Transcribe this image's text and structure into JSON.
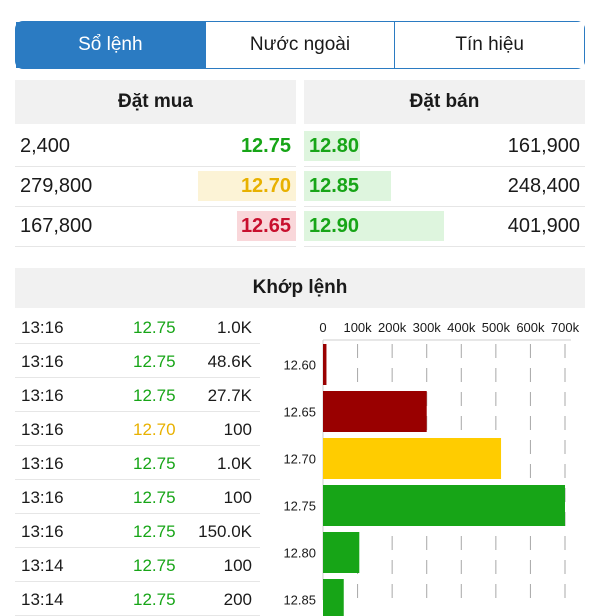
{
  "tabs": [
    {
      "label": "Sổ lệnh",
      "active": true
    },
    {
      "label": "Nước ngoài",
      "active": false
    },
    {
      "label": "Tín hiệu",
      "active": false
    }
  ],
  "orderbook": {
    "buy_header": "Đặt mua",
    "sell_header": "Đặt bán",
    "buy": [
      {
        "volume": "2,400",
        "price": "12.75",
        "color": "#17a517",
        "bar_color": "",
        "bar_fraction": 0
      },
      {
        "volume": "279,800",
        "price": "12.70",
        "color": "#e8b100",
        "bar_color": "#fcf3d6",
        "bar_fraction": 0.7
      },
      {
        "volume": "167,800",
        "price": "12.65",
        "color": "#c8102e",
        "bar_color": "#f9d7da",
        "bar_fraction": 0.42
      }
    ],
    "sell": [
      {
        "price": "12.80",
        "volume": "161,900",
        "color": "#17a517",
        "bar_color": "#def5de",
        "bar_fraction": 0.4
      },
      {
        "price": "12.85",
        "volume": "248,400",
        "color": "#17a517",
        "bar_color": "#def5de",
        "bar_fraction": 0.62
      },
      {
        "price": "12.90",
        "volume": "401,900",
        "color": "#17a517",
        "bar_color": "#def5de",
        "bar_fraction": 1.0
      }
    ]
  },
  "matched": {
    "header": "Khớp lệnh",
    "trades": [
      {
        "time": "13:16",
        "price": "12.75",
        "volume": "1.0K",
        "color": "#17a517"
      },
      {
        "time": "13:16",
        "price": "12.75",
        "volume": "48.6K",
        "color": "#17a517"
      },
      {
        "time": "13:16",
        "price": "12.75",
        "volume": "27.7K",
        "color": "#17a517"
      },
      {
        "time": "13:16",
        "price": "12.70",
        "volume": "100",
        "color": "#e8b100"
      },
      {
        "time": "13:16",
        "price": "12.75",
        "volume": "1.0K",
        "color": "#17a517"
      },
      {
        "time": "13:16",
        "price": "12.75",
        "volume": "100",
        "color": "#17a517"
      },
      {
        "time": "13:16",
        "price": "12.75",
        "volume": "150.0K",
        "color": "#17a517"
      },
      {
        "time": "13:14",
        "price": "12.75",
        "volume": "100",
        "color": "#17a517"
      },
      {
        "time": "13:14",
        "price": "12.75",
        "volume": "200",
        "color": "#17a517"
      }
    ]
  },
  "chart_data": {
    "type": "bar",
    "orientation": "horizontal",
    "categories": [
      "12.60",
      "12.65",
      "12.70",
      "12.75",
      "12.80",
      "12.85"
    ],
    "values": [
      10000,
      300000,
      515000,
      700000,
      105000,
      60000
    ],
    "colors": [
      "#990000",
      "#990000",
      "#ffcc00",
      "#17a517",
      "#17a517",
      "#17a517"
    ],
    "x_ticks": [
      "0",
      "100k",
      "200k",
      "300k",
      "400k",
      "500k",
      "600k",
      "700k"
    ],
    "xlim": [
      0,
      700000
    ],
    "grid": true
  }
}
